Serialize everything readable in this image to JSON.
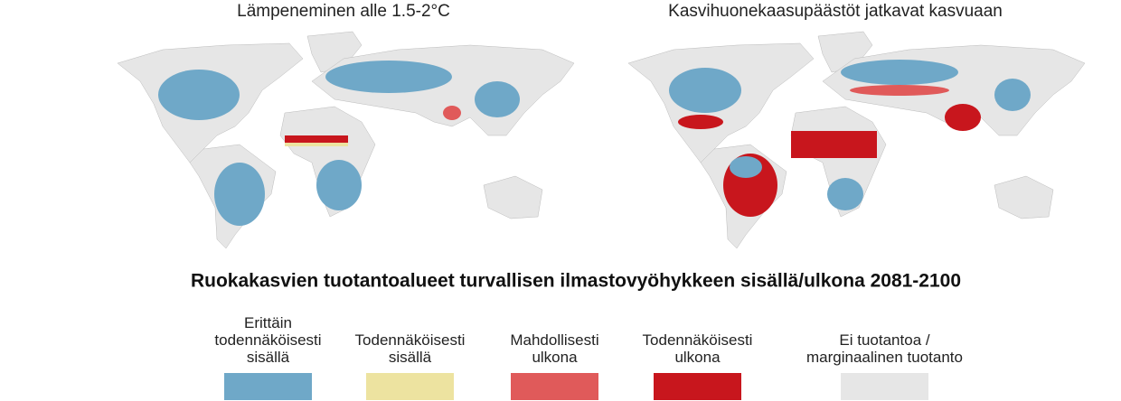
{
  "maps": [
    {
      "title": "Lämpeneminen alle 1.5-2°C"
    },
    {
      "title": "Kasvihuonekaasupäästöt jatkavat kasvuaan"
    }
  ],
  "legend": {
    "title": "Ruokakasvien tuotantoalueet turvallisen ilmastovyöhykkeen sisällä/ulkona 2081-2100",
    "items": [
      {
        "lines": [
          "Erittäin",
          "todennäköisesti",
          "sisällä"
        ],
        "color": "#6fa8c8"
      },
      {
        "lines": [
          "Todennäköisesti",
          "sisällä"
        ],
        "color": "#ede3a0"
      },
      {
        "lines": [
          "Mahdollisesti",
          "ulkona"
        ],
        "color": "#e05a5a"
      },
      {
        "lines": [
          "Todennäköisesti",
          "ulkona"
        ],
        "color": "#c8161d"
      },
      {
        "lines": [
          "Ei tuotantoa /",
          "marginaalinen tuotanto"
        ],
        "color": "#e6e6e6"
      }
    ]
  }
}
